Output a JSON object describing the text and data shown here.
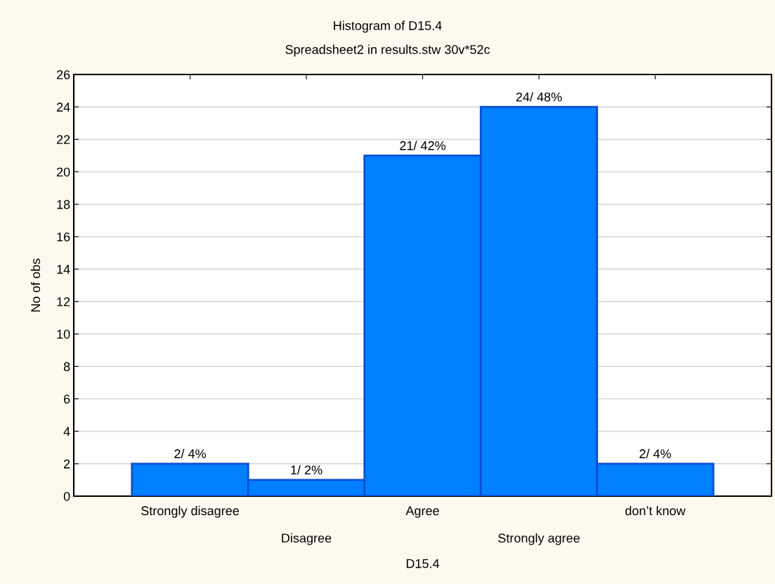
{
  "chart_data": {
    "type": "bar",
    "title": "Histogram of D15.4",
    "subtitle": "Spreadsheet2 in results.stw 30v*52c",
    "xlabel": "D15.4",
    "ylabel": "No of obs",
    "categories": [
      "Strongly disagree",
      "Disagree",
      "Agree",
      "Strongly agree",
      "don’t know"
    ],
    "values": [
      2,
      1,
      21,
      24,
      2
    ],
    "color": "#0080ff",
    "value_labels": [
      "2/ 4%",
      "1/ 2%",
      "21/ 42%",
      "24/ 48%",
      "2/ 4%"
    ],
    "ylim": [
      0,
      26
    ],
    "yticks": [
      0,
      2,
      4,
      6,
      8,
      10,
      12,
      14,
      16,
      18,
      20,
      22,
      24,
      26
    ],
    "grid": "y"
  }
}
